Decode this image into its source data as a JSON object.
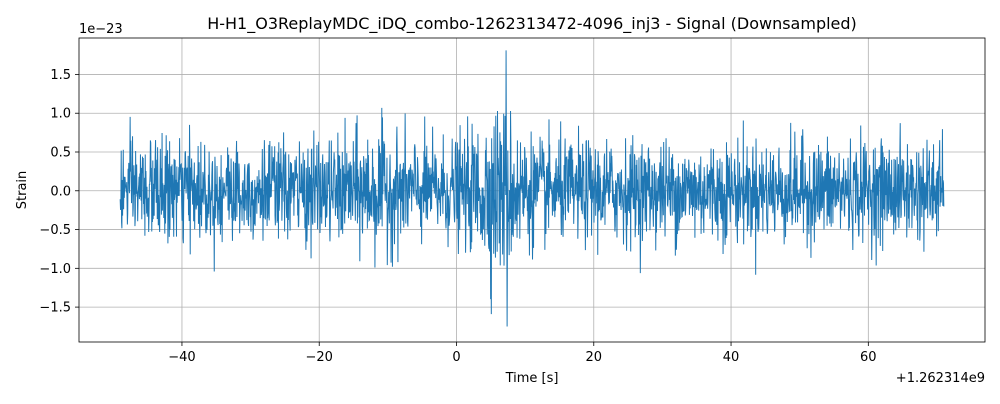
{
  "chart_data": {
    "type": "line",
    "title": "H-H1_O3ReplayMDC_iDQ_combo-1262313472-4096_inj3 - Signal (Downsampled)",
    "xlabel": "Time [s]",
    "ylabel": "Strain",
    "x_offset_label": "+1.262314e9",
    "y_scale_label": "1e−23",
    "xlim": [
      -55,
      77
    ],
    "ylim": [
      -1.95,
      1.97
    ],
    "xticks": [
      -40,
      -20,
      0,
      20,
      40,
      60
    ],
    "xtick_labels": [
      "−40",
      "−20",
      "0",
      "20",
      "40",
      "60"
    ],
    "yticks": [
      -1.5,
      -1.0,
      -0.5,
      0.0,
      0.5,
      1.0,
      1.5
    ],
    "ytick_labels": [
      "−1.5",
      "−1.0",
      "−0.5",
      "0.0",
      "0.5",
      "1.0",
      "1.5"
    ],
    "grid": true,
    "line_color": "#1f77b4",
    "signal": {
      "t_start": -49,
      "t_end": 71,
      "samples": 2400,
      "rms_baseline": 0.32,
      "burst_center": 6,
      "burst_width": 3.5,
      "burst_gain": 0.7,
      "peak_max": 1.81,
      "peak_min": -1.75
    }
  }
}
